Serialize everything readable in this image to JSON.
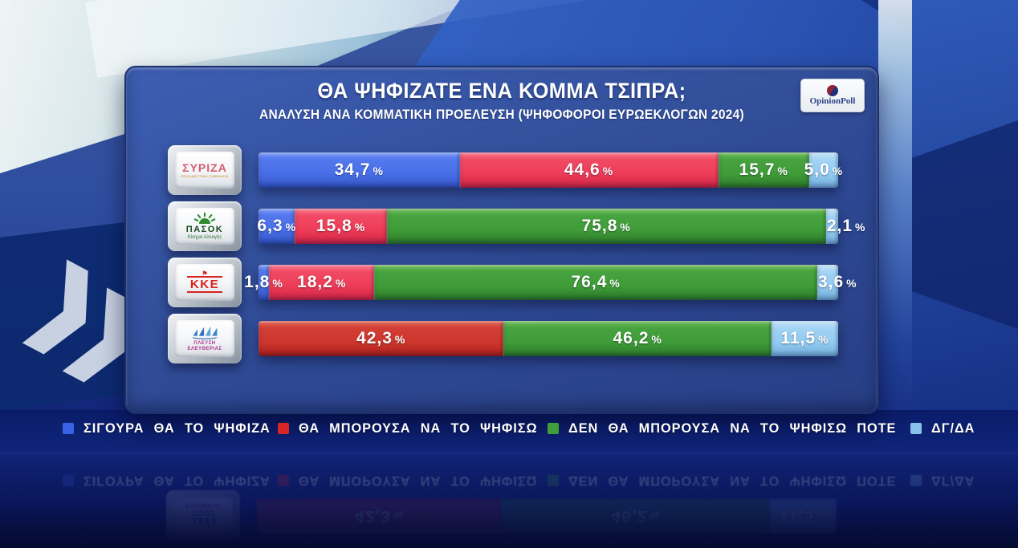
{
  "header": {
    "title": "ΘΑ ΨΗΦΙΖΑΤΕ ΕΝΑ ΚΟΜΜΑ ΤΣΙΠΡΑ;",
    "subtitle": "ΑΝΑΛΥΣΗ ΑΝΑ ΚΟΜΜΑΤΙΚΗ ΠΡΟΕΛΕΥΣΗ (ΨΗΦΟΦΟΡΟΙ ΕΥΡΩΕΚΛΟΓΩΝ 2024)",
    "logo_text": "OpinionPoll"
  },
  "percent_sign": "%",
  "legend": {
    "items": [
      {
        "label": "ΣΙΓΟΥΡΑ ΘΑ ΤΟ ΨΗΦΙΖΑ",
        "color": "#3a62e8"
      },
      {
        "label": "ΘΑ ΜΠΟΡΟΥΣΑ ΝΑ ΤΟ ΨΗΦΙΣΩ",
        "color": "#d92525"
      },
      {
        "label": "ΔΕΝ ΘΑ ΜΠΟΡΟΥΣΑ ΝΑ ΤΟ ΨΗΦΙΣΩ ΠΟΤΕ",
        "color": "#3f9e3a"
      },
      {
        "label": "ΔΓ/ΔΑ",
        "color": "#86c1ea"
      }
    ]
  },
  "chart_data": {
    "type": "bar",
    "orientation": "horizontal-stacked",
    "title": "ΘΑ ΨΗΦΙΖΑΤΕ ΕΝΑ ΚΟΜΜΑ ΤΣΙΠΡΑ;",
    "subtitle": "ΑΝΑΛΥΣΗ ΑΝΑ ΚΟΜΜΑΤΙΚΗ ΠΡΟΕΛΕΥΣΗ (ΨΗΦΟΦΟΡΟΙ ΕΥΡΩΕΚΛΟΓΩΝ 2024)",
    "categories": [
      "ΣΥΡΙΖΑ",
      "ΠΑΣΟΚ ΚΙΝΗΜΑ ΑΛΛΑΓΗΣ",
      "ΚΚΕ",
      "ΠΛΕΥΣΗ ΕΛΕΥΘΕΡΙΑΣ"
    ],
    "series": [
      {
        "name": "ΣΙΓΟΥΡΑ ΘΑ ΤΟ ΨΗΦΙΖΑ",
        "color": "#4a70e9",
        "values": [
          34.7,
          6.3,
          1.8,
          0
        ]
      },
      {
        "name": "ΘΑ ΜΠΟΡΟΥΣΑ ΝΑ ΤΟ ΨΗΦΙΣΩ",
        "color": "#ee3c58",
        "values": [
          44.6,
          15.8,
          18.2,
          42.3
        ]
      },
      {
        "name": "ΔΕΝ ΘΑ ΜΠΟΡΟΥΣΑ ΝΑ ΤΟ ΨΗΦΙΣΩ ΠΟΤΕ",
        "color": "#3f9c38",
        "values": [
          15.7,
          75.8,
          76.4,
          46.2
        ]
      },
      {
        "name": "ΔΓ/ΔΑ",
        "color": "#93cbf1",
        "values": [
          5.0,
          2.1,
          3.6,
          11.5
        ]
      }
    ],
    "value_suffix": "%",
    "xlim": [
      0,
      100
    ],
    "legend_position": "bottom",
    "grid": false
  },
  "rows": [
    {
      "party": "ΣΥΡΙΖΑ",
      "party_sub": "ΠΡΟΟΔΕΥΤΙΚΗ ΣΥΜΜΑΧΙΑ",
      "segments": [
        {
          "label": "34,7"
        },
        {
          "label": "44,6"
        },
        {
          "label": "15,7"
        },
        {
          "label": "5,0"
        }
      ]
    },
    {
      "party": "ΠΑΣΟΚ",
      "party_sub": "Κίνημα Αλλαγής",
      "segments": [
        {
          "label": "6,3"
        },
        {
          "label": "15,8"
        },
        {
          "label": "75,8"
        },
        {
          "label": "2,1"
        }
      ]
    },
    {
      "party": "ΚΚΕ",
      "party_sub": "",
      "segments": [
        {
          "label": "1,8"
        },
        {
          "label": "18,2"
        },
        {
          "label": "76,4"
        },
        {
          "label": "3,6"
        }
      ]
    },
    {
      "party": "ΠΛΕΥΣΗ",
      "party_sub": "ΕΛΕΥΘΕΡΙΑΣ",
      "segments": [
        {
          "label": "42,3"
        },
        {
          "label": "46,2"
        },
        {
          "label": "11,5"
        }
      ]
    }
  ]
}
